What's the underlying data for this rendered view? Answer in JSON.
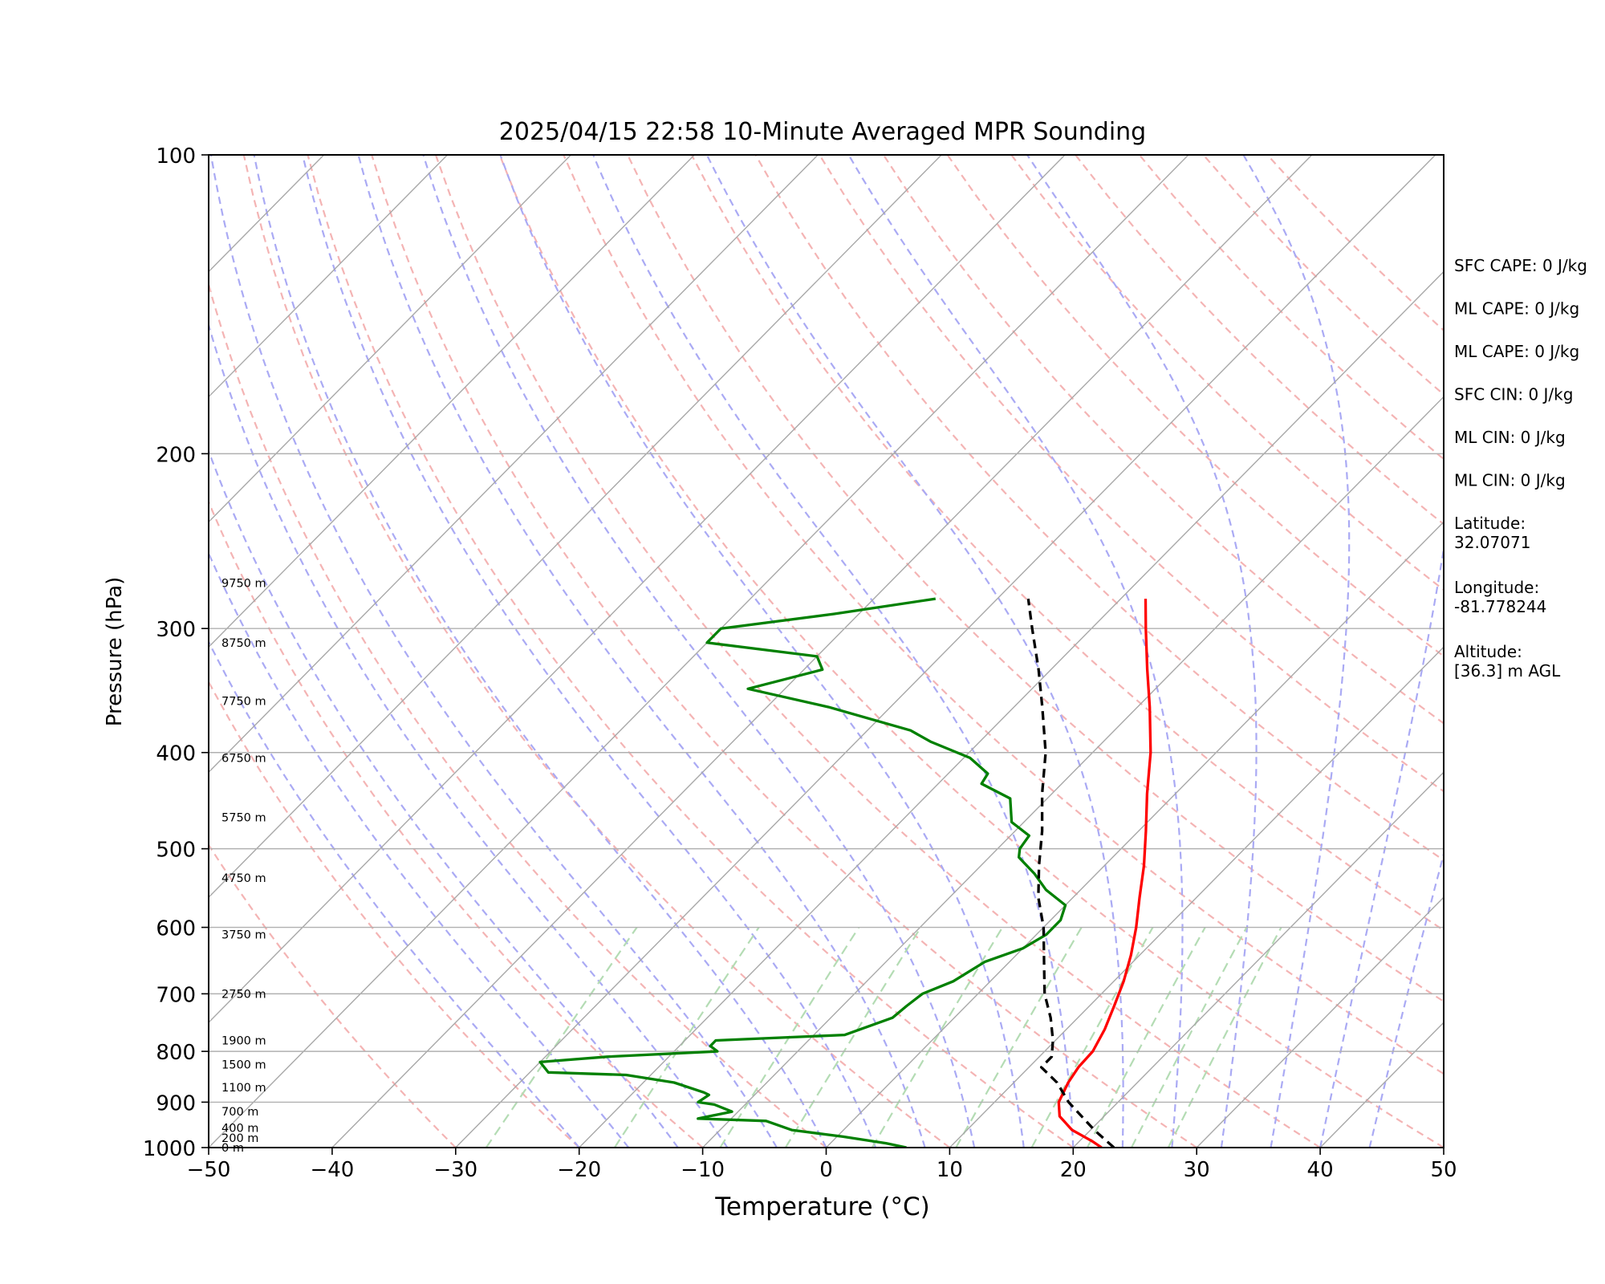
{
  "chart_data": {
    "type": "skew-t log-p sounding",
    "title": "2025/04/15 22:58 10-Minute Averaged MPR Sounding",
    "xlabel": "Temperature (°C)",
    "ylabel": "Pressure (hPa)",
    "xlim": [
      -50,
      50
    ],
    "ylim": [
      1000,
      100
    ],
    "y_scale": "log",
    "x_ticks": [
      -50,
      -40,
      -30,
      -20,
      -10,
      0,
      10,
      20,
      30,
      40,
      50
    ],
    "x_tick_labels": [
      "−50",
      "−40",
      "−30",
      "−20",
      "−10",
      "0",
      "10",
      "20",
      "30",
      "40",
      "50"
    ],
    "y_ticks": [
      100,
      200,
      300,
      400,
      500,
      600,
      700,
      800,
      900,
      1000
    ],
    "y_tick_labels": [
      "100",
      "200",
      "300",
      "400",
      "500",
      "600",
      "700",
      "800",
      "900",
      "1000"
    ],
    "grid": "horizontal isobars",
    "colors": {
      "temperature": "#ff0000",
      "dewpoint": "#008000",
      "parcel": "#000000",
      "isotherm": "#a8a8a8",
      "dry_adiabat": "#f4b4b4",
      "moist_adiabat": "#aaaaf4",
      "mixing_ratio": "#b4dcb4",
      "isobar": "#b0b0b0"
    },
    "series": [
      {
        "line": "temperature",
        "style": "solid",
        "points": [
          {
            "p": 1000,
            "t": 22.3
          },
          {
            "p": 985,
            "t": 21.0
          },
          {
            "p": 960,
            "t": 18.5
          },
          {
            "p": 930,
            "t": 16.4
          },
          {
            "p": 900,
            "t": 15.2
          },
          {
            "p": 860,
            "t": 14.4
          },
          {
            "p": 830,
            "t": 14.0
          },
          {
            "p": 800,
            "t": 13.9
          },
          {
            "p": 760,
            "t": 13.1
          },
          {
            "p": 720,
            "t": 12.0
          },
          {
            "p": 680,
            "t": 10.8
          },
          {
            "p": 640,
            "t": 9.3
          },
          {
            "p": 600,
            "t": 7.5
          },
          {
            "p": 560,
            "t": 5.4
          },
          {
            "p": 520,
            "t": 3.2
          },
          {
            "p": 480,
            "t": 0.6
          },
          {
            "p": 440,
            "t": -2.3
          },
          {
            "p": 400,
            "t": -5.3
          },
          {
            "p": 360,
            "t": -9.0
          },
          {
            "p": 330,
            "t": -12.2
          },
          {
            "p": 300,
            "t": -15.6
          },
          {
            "p": 280,
            "t": -18.0
          }
        ]
      },
      {
        "line": "dewpoint",
        "style": "solid",
        "points": [
          {
            "p": 1000,
            "t": 6.5
          },
          {
            "p": 990,
            "t": 4.5
          },
          {
            "p": 975,
            "t": 0.5
          },
          {
            "p": 960,
            "t": -4.2
          },
          {
            "p": 940,
            "t": -7.0
          },
          {
            "p": 935,
            "t": -12.7
          },
          {
            "p": 920,
            "t": -10.5
          },
          {
            "p": 905,
            "t": -12.5
          },
          {
            "p": 900,
            "t": -14.0
          },
          {
            "p": 885,
            "t": -13.7
          },
          {
            "p": 880,
            "t": -14.3
          },
          {
            "p": 860,
            "t": -17.5
          },
          {
            "p": 845,
            "t": -22.0
          },
          {
            "p": 840,
            "t": -28.5
          },
          {
            "p": 820,
            "t": -30.0
          },
          {
            "p": 810,
            "t": -25.0
          },
          {
            "p": 800,
            "t": -16.5
          },
          {
            "p": 790,
            "t": -17.5
          },
          {
            "p": 780,
            "t": -17.5
          },
          {
            "p": 770,
            "t": -7.5
          },
          {
            "p": 740,
            "t": -5.0
          },
          {
            "p": 720,
            "t": -4.8
          },
          {
            "p": 700,
            "t": -4.5
          },
          {
            "p": 680,
            "t": -3.0
          },
          {
            "p": 650,
            "t": -2.0
          },
          {
            "p": 630,
            "t": 0.0
          },
          {
            "p": 610,
            "t": 0.8
          },
          {
            "p": 590,
            "t": 0.8
          },
          {
            "p": 570,
            "t": 0.0
          },
          {
            "p": 550,
            "t": -2.8
          },
          {
            "p": 530,
            "t": -5.0
          },
          {
            "p": 510,
            "t": -7.6
          },
          {
            "p": 500,
            "t": -8.2
          },
          {
            "p": 485,
            "t": -8.5
          },
          {
            "p": 470,
            "t": -11.0
          },
          {
            "p": 445,
            "t": -13.0
          },
          {
            "p": 430,
            "t": -16.5
          },
          {
            "p": 420,
            "t": -16.8
          },
          {
            "p": 405,
            "t": -19.5
          },
          {
            "p": 390,
            "t": -24.0
          },
          {
            "p": 380,
            "t": -26.5
          },
          {
            "p": 360,
            "t": -35.0
          },
          {
            "p": 345,
            "t": -43.0
          },
          {
            "p": 330,
            "t": -38.5
          },
          {
            "p": 320,
            "t": -40.0
          },
          {
            "p": 310,
            "t": -50.0
          },
          {
            "p": 300,
            "t": -50.0
          },
          {
            "p": 290,
            "t": -42.0
          },
          {
            "p": 280,
            "t": -35.0
          }
        ]
      },
      {
        "line": "parcel",
        "style": "dashed",
        "points": [
          {
            "p": 1000,
            "t": 23.3
          },
          {
            "p": 960,
            "t": 20.3
          },
          {
            "p": 900,
            "t": 16.0
          },
          {
            "p": 860,
            "t": 13.5
          },
          {
            "p": 830,
            "t": 11.0
          },
          {
            "p": 810,
            "t": 11.0
          },
          {
            "p": 780,
            "t": 9.8
          },
          {
            "p": 740,
            "t": 7.8
          },
          {
            "p": 700,
            "t": 5.4
          },
          {
            "p": 650,
            "t": 2.8
          },
          {
            "p": 600,
            "t": 0.0
          },
          {
            "p": 560,
            "t": -2.8
          },
          {
            "p": 520,
            "t": -5.3
          },
          {
            "p": 480,
            "t": -7.8
          },
          {
            "p": 440,
            "t": -10.8
          },
          {
            "p": 400,
            "t": -13.8
          },
          {
            "p": 360,
            "t": -17.7
          },
          {
            "p": 330,
            "t": -21.0
          },
          {
            "p": 300,
            "t": -24.8
          },
          {
            "p": 280,
            "t": -27.5
          }
        ]
      }
    ],
    "height_labels": [
      {
        "p": 1000,
        "text": "0 m"
      },
      {
        "p": 978,
        "text": "200 m"
      },
      {
        "p": 955,
        "text": "400 m"
      },
      {
        "p": 920,
        "text": "700 m"
      },
      {
        "p": 870,
        "text": "1100 m"
      },
      {
        "p": 825,
        "text": "1500 m"
      },
      {
        "p": 780,
        "text": "1900 m"
      },
      {
        "p": 700,
        "text": "2750 m"
      },
      {
        "p": 610,
        "text": "3750 m"
      },
      {
        "p": 535,
        "text": "4750 m"
      },
      {
        "p": 465,
        "text": "5750 m"
      },
      {
        "p": 405,
        "text": "6750 m"
      },
      {
        "p": 355,
        "text": "7750 m"
      },
      {
        "p": 310,
        "text": "8750 m"
      },
      {
        "p": 270,
        "text": "9750 m"
      }
    ],
    "indices": [
      {
        "label": "SFC CAPE",
        "value": "0 J/kg",
        "text": "SFC CAPE: 0 J/kg"
      },
      {
        "label": "ML CAPE",
        "value": "0 J/kg",
        "text": "ML CAPE: 0 J/kg"
      },
      {
        "label": "ML CAPE",
        "value": "0 J/kg",
        "text": "ML CAPE: 0 J/kg"
      },
      {
        "label": "SFC CIN",
        "value": "0 J/kg",
        "text": "SFC CIN: 0 J/kg"
      },
      {
        "label": "ML CIN",
        "value": "0 J/kg",
        "text": "ML CIN: 0 J/kg"
      },
      {
        "label": "ML CIN",
        "value": "0 J/kg",
        "text": "ML CIN: 0 J/kg"
      }
    ],
    "location": [
      {
        "label": "Latitude:",
        "value": "32.07071"
      },
      {
        "label": "Longitude:",
        "value": "-81.778244"
      },
      {
        "label": "Altitude:",
        "value": "[36.3] m AGL"
      }
    ]
  }
}
